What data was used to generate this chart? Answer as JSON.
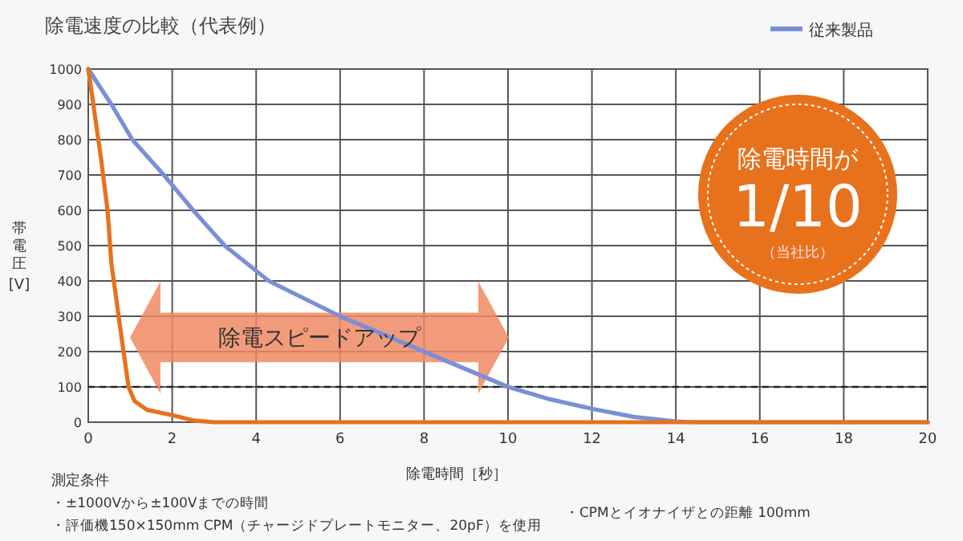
{
  "chart_data": {
    "type": "line",
    "title": "除電速度の比較（代表例）",
    "xlabel": "除電時間［秒］",
    "ylabel": "帯電圧 [V]",
    "xlim": [
      0,
      20
    ],
    "ylim": [
      0,
      1000
    ],
    "xticks": [
      0,
      2,
      4,
      6,
      8,
      10,
      12,
      14,
      16,
      18,
      20
    ],
    "yticks": [
      0,
      100,
      200,
      300,
      400,
      500,
      600,
      700,
      800,
      900,
      1000
    ],
    "grid": true,
    "legend": "top right",
    "marker": "none",
    "line_style": "solid",
    "series": [
      {
        "color": "#e8711c",
        "x": [
          0,
          0.3,
          0.46,
          0.55,
          0.7,
          0.84,
          0.96,
          1.1,
          1.4,
          2,
          2.5,
          3,
          20
        ],
        "values": [
          1000,
          750,
          600,
          450,
          320,
          200,
          100,
          60,
          35,
          20,
          5,
          0,
          0
        ]
      },
      {
        "name": "従来製品",
        "color": "#7b8fd6",
        "x": [
          0,
          0.55,
          1.05,
          1.8,
          2.5,
          3.25,
          4.3,
          6,
          8,
          10,
          11,
          12,
          13,
          14,
          14.5,
          20
        ],
        "values": [
          1000,
          900,
          800,
          700,
          600,
          500,
          400,
          300,
          200,
          100,
          65,
          38,
          15,
          2,
          0,
          0
        ]
      }
    ],
    "ref_lines": [
      {
        "axis": "y",
        "value": 100,
        "color": "#222222",
        "line_style": "dashed"
      }
    ],
    "annotations": [
      "除電時間が",
      "1/10",
      "（当社比）",
      "除電スピードアップ",
      "測定条件",
      "・±1000Vから±100Vまでの時間",
      "・評価機150×150mm CPM（チャージドプレートモニター、20pF）を使用",
      "・CPMとイオナイザとの距離 100mm"
    ]
  }
}
